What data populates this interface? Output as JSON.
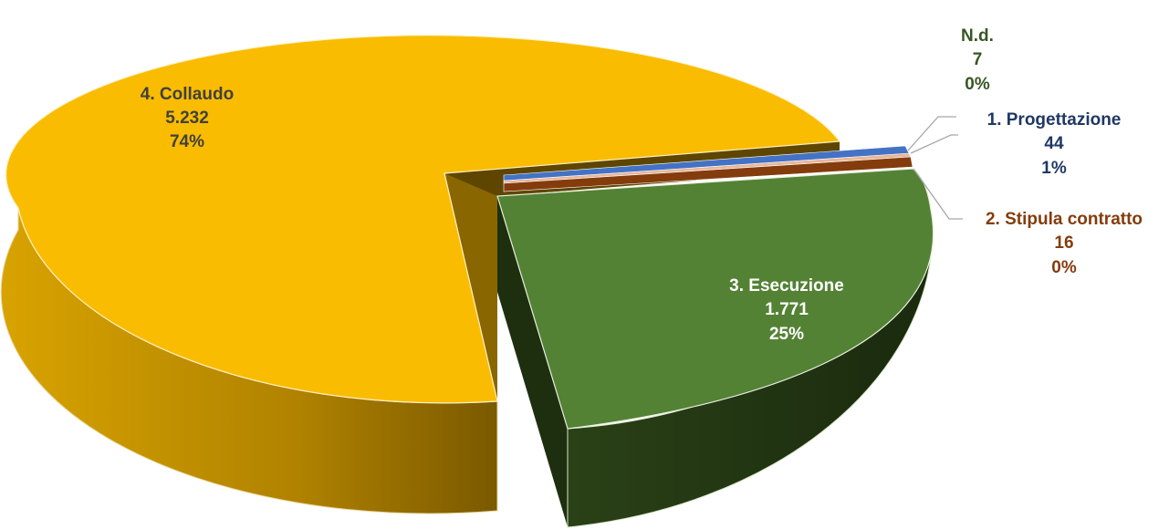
{
  "chart_data": {
    "type": "pie",
    "style": "3d-exploded",
    "title": "",
    "legend": "none",
    "slices": [
      {
        "name": "N.d.",
        "value_label": "7",
        "percent_label": "0%",
        "value": 7,
        "color": "#e9b79a",
        "label_color": "#375623"
      },
      {
        "name": "1. Progettazione",
        "value_label": "44",
        "percent_label": "1%",
        "value": 44,
        "color": "#4472c4",
        "label_color": "#1f3864"
      },
      {
        "name": "2. Stipula contratto",
        "value_label": "16",
        "percent_label": "0%",
        "value": 16,
        "color": "#843c0c",
        "label_color": "#843c0c"
      },
      {
        "name": "3. Esecuzione",
        "value_label": "1.771",
        "percent_label": "25%",
        "value": 1771,
        "color": "#548235",
        "label_color": "#ffffff"
      },
      {
        "name": "4. Collaudo",
        "value_label": "5.232",
        "percent_label": "74%",
        "value": 5232,
        "color": "#f9bc00",
        "label_color": "#404040"
      }
    ]
  }
}
